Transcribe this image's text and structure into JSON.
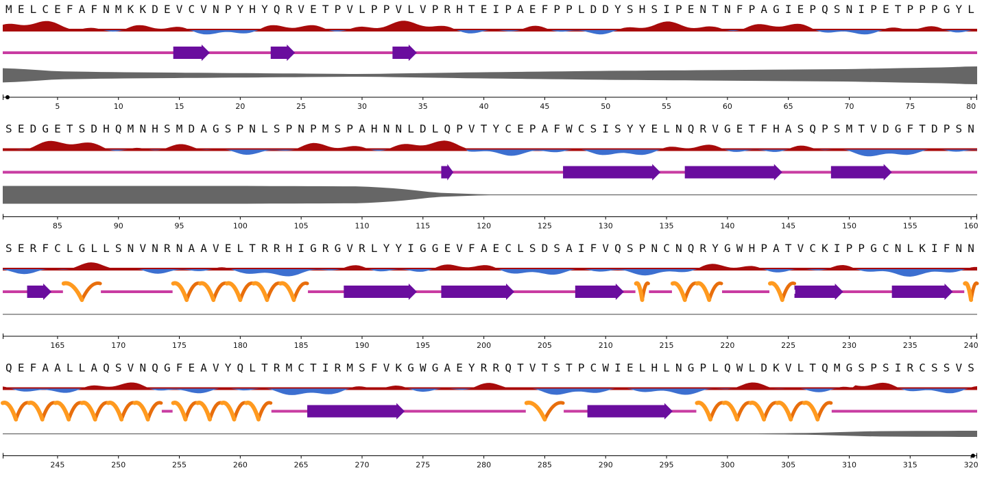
{
  "sequence": "MELCEFAFNMKKDEVCVNPYHYQRVETPVLPPVLVPRHTEIPAEFPPLDDYSHSIPENTNFPAGIEPQSNIPETPPPGYLSEDGETSDHQMNHSMDAGSPNLSPNPMSPAHNNLDLQPVTYCEPAFWCSISYYELNQRVGETFHASQPSMTVDGFTDPSNSERFCLGLLSNVNRNAAVELTRRHIGRGVRLYYIGGEVFAECLSDSAIFVQSPNCNQRYGWHPATVCKIPPGCNLKIFNNQEFAALLAQSVNQGFEAVYQLTRMCTIRMSFVKGWGAEYRRQTVTSTPCWIELHLNGPLQWLDKVLTQMGSPSIRCSSVS",
  "row_length": 80,
  "tick_interval": 5,
  "colors": {
    "hydrophobic_positive": "#a80b0b",
    "hydrophobic_negative": "#3c6fd0",
    "coil": "#c83ca2",
    "strand": "#6a0d9e",
    "helix_front": "#ff9a1f",
    "helix_back": "#e86e0c",
    "disorder": "#666666",
    "axis": "#000000"
  },
  "secondary_structure": {
    "strands": [
      [
        15,
        17
      ],
      [
        23,
        24
      ],
      [
        33,
        34
      ],
      [
        117,
        117
      ],
      [
        127,
        134
      ],
      [
        137,
        144
      ],
      [
        149,
        153
      ],
      [
        163,
        164
      ],
      [
        189,
        194
      ],
      [
        197,
        202
      ],
      [
        208,
        211
      ],
      [
        226,
        229
      ],
      [
        234,
        238
      ],
      [
        266,
        273
      ],
      [
        289,
        295
      ]
    ],
    "helices": [
      [
        166,
        168
      ],
      [
        175,
        185
      ],
      [
        213,
        213
      ],
      [
        216,
        219
      ],
      [
        224,
        225
      ],
      [
        240,
        253
      ],
      [
        255,
        262
      ],
      [
        284,
        286
      ],
      [
        298,
        308
      ]
    ]
  },
  "disorder_profile": [
    [
      1,
      0.8
    ],
    [
      5,
      0.45
    ],
    [
      10,
      0.35
    ],
    [
      20,
      0.25
    ],
    [
      30,
      0.15
    ],
    [
      40,
      0.35
    ],
    [
      50,
      0.5
    ],
    [
      60,
      0.6
    ],
    [
      70,
      0.7
    ],
    [
      78,
      0.9
    ],
    [
      80,
      1.0
    ],
    [
      81,
      1.0
    ],
    [
      90,
      1.0
    ],
    [
      100,
      1.0
    ],
    [
      110,
      0.95
    ],
    [
      113,
      0.7
    ],
    [
      116,
      0.25
    ],
    [
      120,
      0.05
    ],
    [
      160,
      0.03
    ],
    [
      200,
      0.02
    ],
    [
      240,
      0.02
    ],
    [
      300,
      0.02
    ],
    [
      307,
      0.1
    ],
    [
      312,
      0.3
    ],
    [
      320,
      0.35
    ]
  ]
}
